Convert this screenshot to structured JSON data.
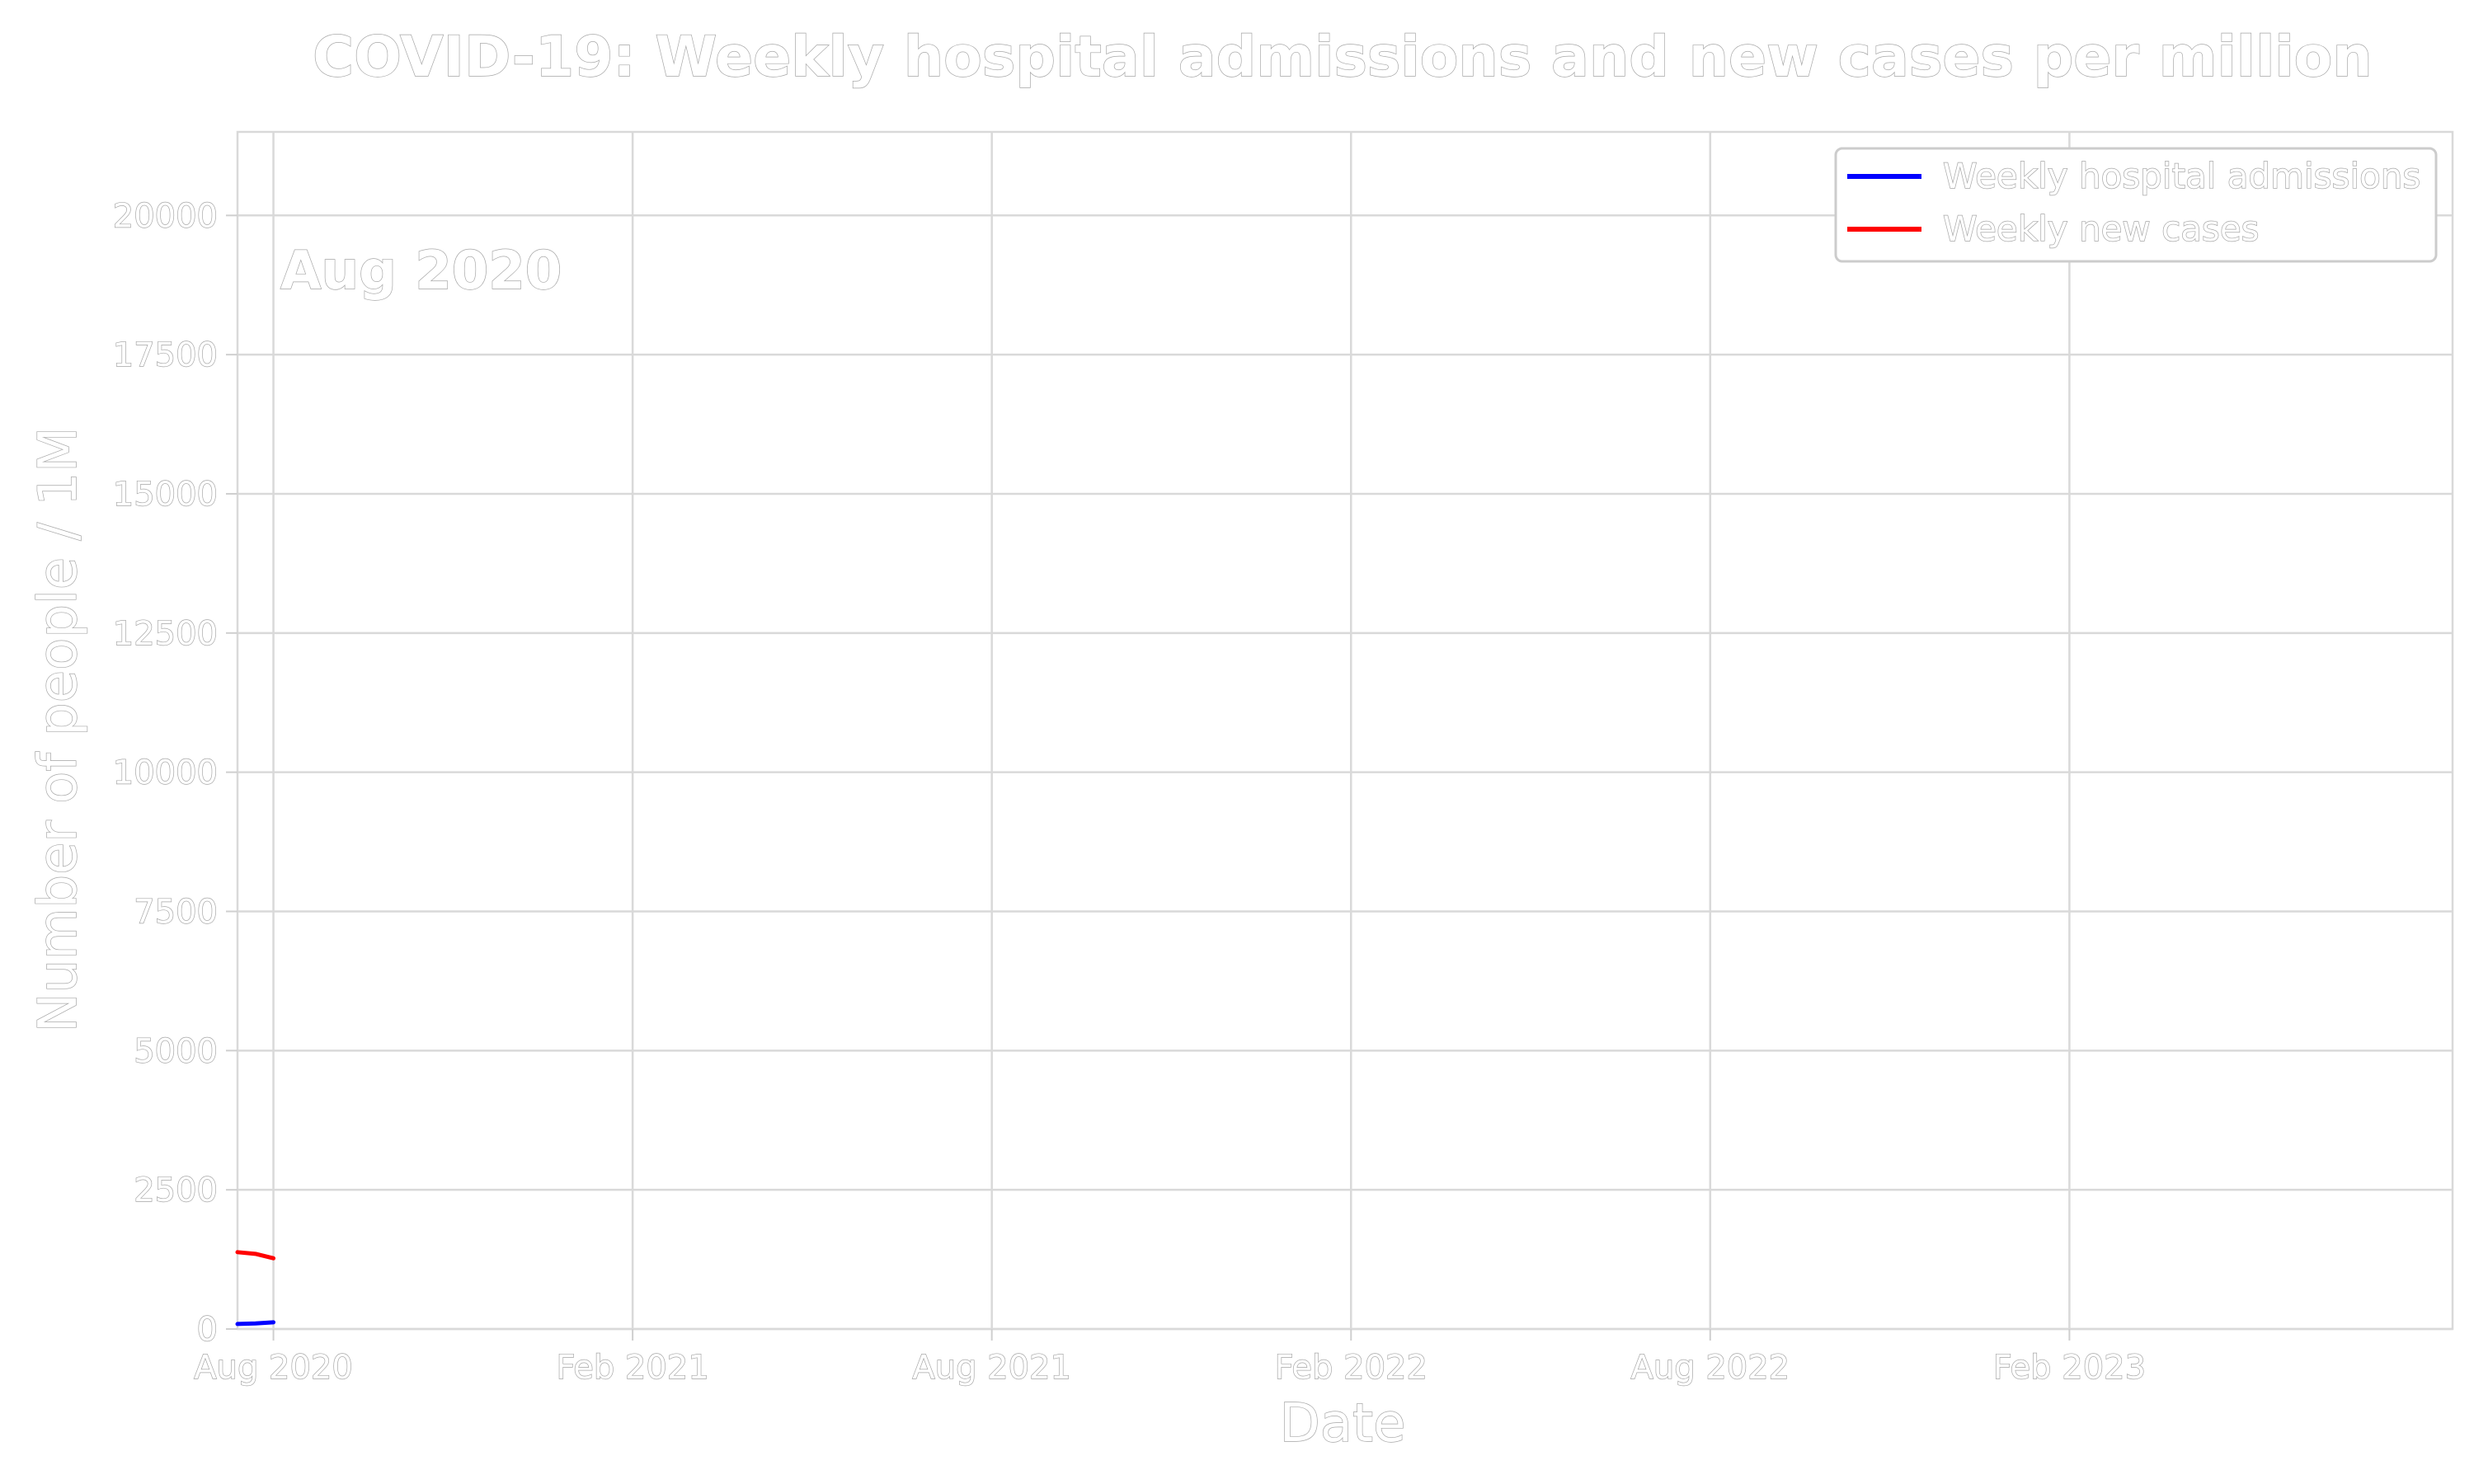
{
  "chart_data": {
    "type": "line",
    "title": "COVID-19: Weekly hospital admissions and new cases per million",
    "date_stamp": "Aug 2020",
    "xlabel": "Date",
    "ylabel": "Number of people / 1M",
    "x_range_months": [
      -0.6,
      36.4
    ],
    "x_origin": "Aug 2020",
    "ylim": [
      0,
      21500
    ],
    "y_ticks": [
      0,
      2500,
      5000,
      7500,
      10000,
      12500,
      15000,
      17500,
      20000
    ],
    "x_ticks": [
      {
        "label": "Aug 2020",
        "month": 0
      },
      {
        "label": "Feb 2021",
        "month": 6
      },
      {
        "label": "Aug 2021",
        "month": 12
      },
      {
        "label": "Feb 2022",
        "month": 18
      },
      {
        "label": "Aug 2022",
        "month": 24
      },
      {
        "label": "Feb 2023",
        "month": 30
      }
    ],
    "grid": true,
    "legend_position": "top-right",
    "series": [
      {
        "name": "Weekly hospital admissions",
        "color": "#0000ff",
        "x_months": [
          -0.6,
          -0.3,
          0.0
        ],
        "values": [
          90,
          100,
          120
        ]
      },
      {
        "name": "Weekly new cases",
        "color": "#ff0000",
        "x_months": [
          -0.6,
          -0.3,
          0.0
        ],
        "values": [
          1380,
          1350,
          1270
        ]
      }
    ]
  }
}
